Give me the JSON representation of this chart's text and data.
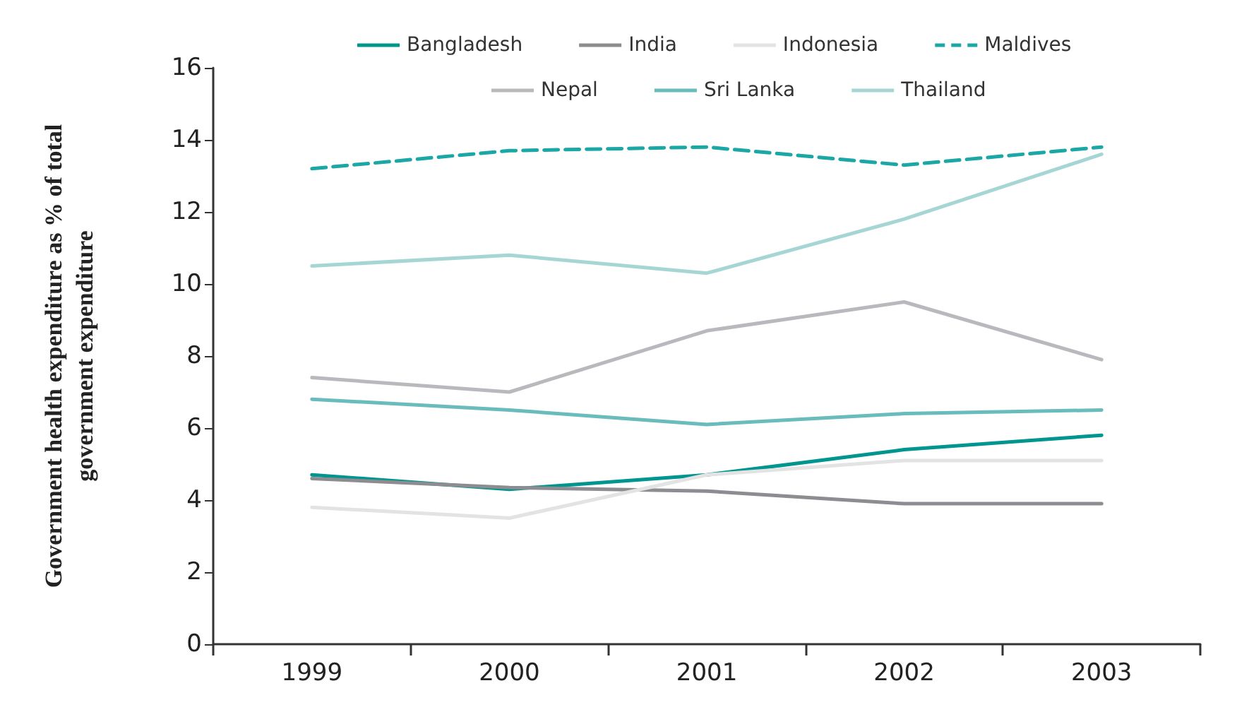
{
  "chart_data": {
    "type": "line",
    "ylabel": "Government health expenditure as % of total\ngovernment expenditure",
    "categories": [
      "1999",
      "2000",
      "2001",
      "2002",
      "2003"
    ],
    "series": [
      {
        "name": "Bangladesh",
        "color": "#00958f",
        "values": [
          4.7,
          4.3,
          4.7,
          5.4,
          5.8
        ]
      },
      {
        "name": "India",
        "color": "#8c8c91",
        "values": [
          4.6,
          4.35,
          4.25,
          3.9,
          3.9
        ]
      },
      {
        "name": "Indonesia",
        "color": "#e3e3e3",
        "values": [
          3.8,
          3.5,
          4.7,
          5.1,
          5.1
        ]
      },
      {
        "name": "Maldives",
        "color": "#1aa7a5",
        "values": [
          13.2,
          13.7,
          13.8,
          13.3,
          13.8
        ],
        "line_style": "dashed"
      },
      {
        "name": "Nepal",
        "color": "#b9b9bd",
        "values": [
          7.4,
          7.0,
          8.7,
          9.5,
          7.9
        ]
      },
      {
        "name": "Sri Lanka",
        "color": "#69bcbb",
        "values": [
          6.8,
          6.5,
          6.1,
          6.4,
          6.5
        ]
      },
      {
        "name": "Thailand",
        "color": "#a6d6d3",
        "values": [
          10.5,
          10.8,
          10.3,
          11.8,
          13.6
        ]
      }
    ],
    "ylim": [
      0,
      16
    ],
    "yticks": [
      0,
      2,
      4,
      6,
      8,
      10,
      12,
      14,
      16
    ],
    "grid": false,
    "legend": "top",
    "marker": "none"
  }
}
